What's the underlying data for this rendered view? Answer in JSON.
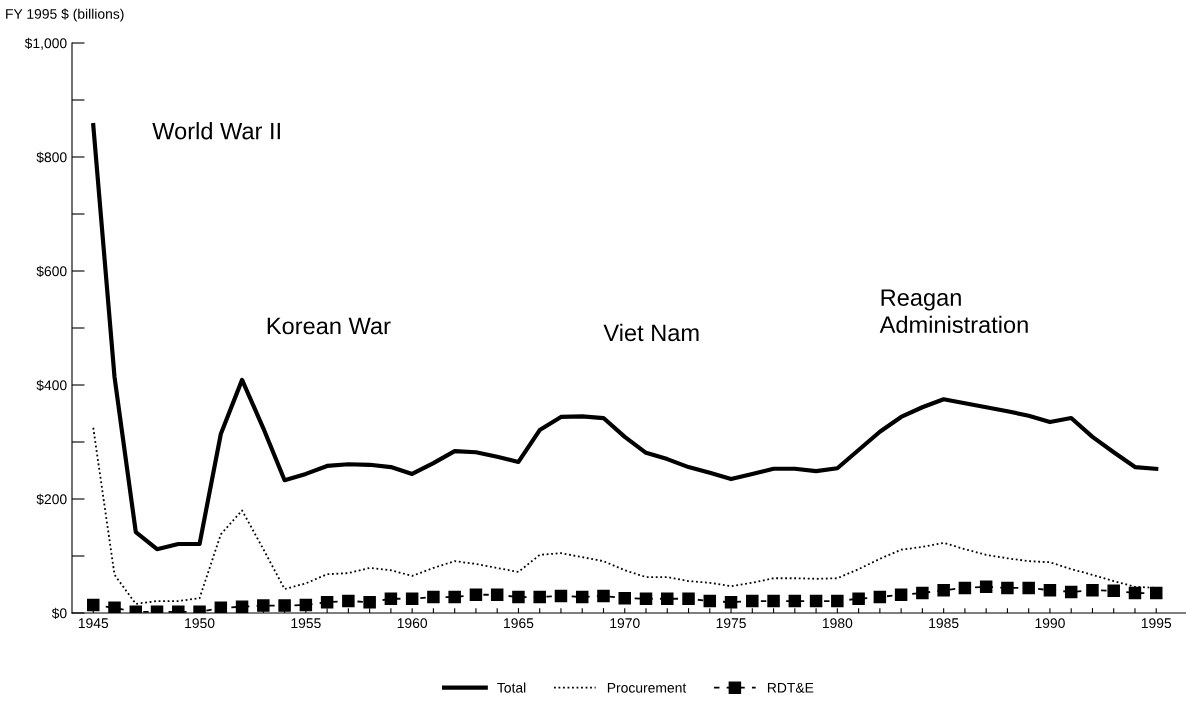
{
  "chart_data": {
    "type": "line",
    "ylabel": "FY 1995 $ (billions)",
    "x": [
      1945,
      1946,
      1947,
      1948,
      1949,
      1950,
      1951,
      1952,
      1953,
      1954,
      1955,
      1956,
      1957,
      1958,
      1959,
      1960,
      1961,
      1962,
      1963,
      1964,
      1965,
      1966,
      1967,
      1968,
      1969,
      1970,
      1971,
      1972,
      1973,
      1974,
      1975,
      1976,
      1977,
      1978,
      1979,
      1980,
      1981,
      1982,
      1983,
      1984,
      1985,
      1986,
      1987,
      1988,
      1989,
      1990,
      1991,
      1992,
      1993,
      1994,
      1995
    ],
    "series": [
      {
        "name": "Total",
        "color": "#000000",
        "line_style": "solid",
        "marker": "none",
        "values": [
          856,
          414,
          142,
          112,
          121,
          121,
          314,
          409,
          324,
          233,
          244,
          258,
          261,
          260,
          256,
          244,
          263,
          284,
          282,
          274,
          265,
          321,
          344,
          345,
          342,
          309,
          281,
          270,
          256,
          246,
          235,
          244,
          253,
          253,
          249,
          254,
          286,
          318,
          344,
          361,
          375,
          368,
          361,
          354,
          346,
          335,
          342,
          309,
          282,
          256,
          253
        ]
      },
      {
        "name": "Procurement",
        "color": "#000000",
        "line_style": "dotted",
        "marker": "none",
        "values": [
          325,
          67,
          16,
          21,
          21,
          26,
          138,
          180,
          112,
          42,
          52,
          68,
          70,
          79,
          75,
          65,
          79,
          91,
          86,
          79,
          72,
          102,
          105,
          98,
          91,
          75,
          63,
          63,
          56,
          53,
          47,
          53,
          61,
          61,
          60,
          61,
          77,
          95,
          111,
          116,
          123,
          112,
          102,
          96,
          91,
          89,
          77,
          67,
          56,
          46,
          44
        ]
      },
      {
        "name": "RDT&E",
        "color": "#000000",
        "line_style": "dashed",
        "marker": "square",
        "values": [
          14,
          9,
          2,
          2,
          2,
          2,
          9,
          11,
          13,
          13,
          14,
          19,
          21,
          19,
          25,
          25,
          28,
          28,
          32,
          32,
          28,
          28,
          30,
          28,
          30,
          26,
          25,
          25,
          25,
          21,
          19,
          21,
          21,
          21,
          21,
          21,
          25,
          28,
          32,
          35,
          40,
          44,
          46,
          44,
          44,
          40,
          37,
          40,
          39,
          35,
          35
        ]
      }
    ],
    "xlim": [
      1944,
      1996.4
    ],
    "xticks": [
      1945,
      {
        "value": 1946,
        "label": null
      },
      {
        "value": 1947,
        "label": null
      },
      {
        "value": 1948,
        "label": null
      },
      {
        "value": 1949,
        "label": null
      },
      1950,
      {
        "value": 1951,
        "label": null
      },
      {
        "value": 1952,
        "label": null
      },
      {
        "value": 1953,
        "label": null
      },
      {
        "value": 1954,
        "label": null
      },
      1955,
      {
        "value": 1956,
        "label": null
      },
      {
        "value": 1957,
        "label": null
      },
      {
        "value": 1958,
        "label": null
      },
      {
        "value": 1959,
        "label": null
      },
      1960,
      {
        "value": 1961,
        "label": null
      },
      {
        "value": 1962,
        "label": null
      },
      {
        "value": 1963,
        "label": null
      },
      {
        "value": 1964,
        "label": null
      },
      1965,
      {
        "value": 1966,
        "label": null
      },
      {
        "value": 1967,
        "label": null
      },
      {
        "value": 1968,
        "label": null
      },
      {
        "value": 1969,
        "label": null
      },
      1970,
      {
        "value": 1971,
        "label": null
      },
      {
        "value": 1972,
        "label": null
      },
      {
        "value": 1973,
        "label": null
      },
      {
        "value": 1974,
        "label": null
      },
      1975,
      {
        "value": 1976,
        "label": null
      },
      {
        "value": 1977,
        "label": null
      },
      {
        "value": 1978,
        "label": null
      },
      {
        "value": 1979,
        "label": null
      },
      1980,
      {
        "value": 1981,
        "label": null
      },
      {
        "value": 1982,
        "label": null
      },
      {
        "value": 1983,
        "label": null
      },
      {
        "value": 1984,
        "label": null
      },
      1985,
      {
        "value": 1986,
        "label": null
      },
      {
        "value": 1987,
        "label": null
      },
      {
        "value": 1988,
        "label": null
      },
      {
        "value": 1989,
        "label": null
      },
      1990,
      {
        "value": 1991,
        "label": null
      },
      {
        "value": 1992,
        "label": null
      },
      {
        "value": 1993,
        "label": null
      },
      {
        "value": 1994,
        "label": null
      },
      1995
    ],
    "ylim": [
      0,
      1000
    ],
    "yticks": [
      {
        "value": 0,
        "label": "$0"
      },
      {
        "value": 100,
        "label": null
      },
      {
        "value": 200,
        "label": "$200"
      },
      {
        "value": 300,
        "label": null
      },
      {
        "value": 400,
        "label": "$400"
      },
      {
        "value": 500,
        "label": null
      },
      {
        "value": 600,
        "label": "$600"
      },
      {
        "value": 700,
        "label": null
      },
      {
        "value": 800,
        "label": "$800"
      },
      {
        "value": 900,
        "label": null
      },
      {
        "value": 1000,
        "label": "$1,000"
      }
    ],
    "annotations": [
      "World War II",
      "Korean War",
      "Viet Nam",
      "Reagan\nAdministration"
    ],
    "grid": false,
    "legend": "bottom"
  }
}
